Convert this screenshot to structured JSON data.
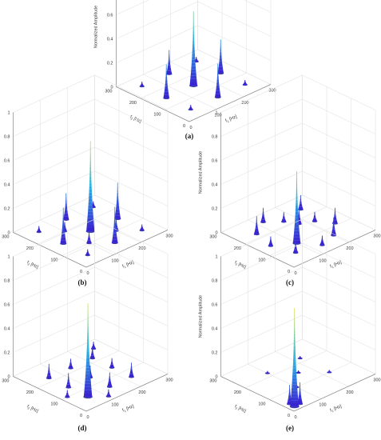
{
  "figure": {
    "z_axis_label": "Normalized Amplitude",
    "f1_label": "[Hz]",
    "f2_label": "[Hz]",
    "f1_symbol": "f",
    "f1_sub": "1",
    "f2_symbol": "f",
    "f2_sub": "2",
    "colors": {
      "grid": "#e3e3e3",
      "axis": "#8a8a8a",
      "base": "#1a1aa6",
      "low": "#3a1fd1",
      "mid": "#29b7e6",
      "high": "#f2e34a"
    }
  },
  "chart_data": [
    {
      "type": "surface",
      "caption": "(a)",
      "z_ticks": [
        "0",
        "0.2",
        "0.4",
        "0.6",
        "0.8",
        "1"
      ],
      "zlim": [
        0,
        1
      ],
      "f1_ticks": [
        "0",
        "100",
        "200",
        "300"
      ],
      "f2_ticks": [
        "0",
        "100",
        "200",
        "300"
      ],
      "xlim": [
        0,
        300
      ],
      "ylim": [
        0,
        300
      ],
      "peaks": [
        {
          "f1": 150,
          "f2": 150,
          "amp": 0.62
        },
        {
          "f1": 150,
          "f2": 50,
          "amp": 0.28
        },
        {
          "f1": 50,
          "f2": 150,
          "amp": 0.28
        },
        {
          "f1": 250,
          "f2": 150,
          "amp": 0.28
        },
        {
          "f1": 150,
          "f2": 250,
          "amp": 0.2
        },
        {
          "f1": 50,
          "f2": 50,
          "amp": 0.04
        },
        {
          "f1": 250,
          "f2": 250,
          "amp": 0.04
        },
        {
          "f1": 250,
          "f2": 50,
          "amp": 0.04
        },
        {
          "f1": 50,
          "f2": 250,
          "amp": 0.04
        }
      ]
    },
    {
      "type": "surface",
      "caption": "(b)",
      "z_ticks": [
        "0",
        "0.2",
        "0.4",
        "0.6",
        "0.8",
        "1"
      ],
      "zlim": [
        0,
        1
      ],
      "f1_ticks": [
        "0",
        "100",
        "200",
        "300"
      ],
      "f2_ticks": [
        "0",
        "100",
        "200",
        "300"
      ],
      "xlim": [
        0,
        300
      ],
      "ylim": [
        0,
        300
      ],
      "peaks": [
        {
          "f1": 150,
          "f2": 150,
          "amp": 0.75
        },
        {
          "f1": 150,
          "f2": 50,
          "amp": 0.3
        },
        {
          "f1": 50,
          "f2": 150,
          "amp": 0.3
        },
        {
          "f1": 250,
          "f2": 150,
          "amp": 0.3
        },
        {
          "f1": 150,
          "f2": 250,
          "amp": 0.22
        },
        {
          "f1": 100,
          "f2": 100,
          "amp": 0.1
        },
        {
          "f1": 200,
          "f2": 100,
          "amp": 0.1
        },
        {
          "f1": 100,
          "f2": 200,
          "amp": 0.08
        },
        {
          "f1": 50,
          "f2": 50,
          "amp": 0.05
        },
        {
          "f1": 250,
          "f2": 250,
          "amp": 0.05
        },
        {
          "f1": 250,
          "f2": 50,
          "amp": 0.05
        },
        {
          "f1": 50,
          "f2": 250,
          "amp": 0.05
        }
      ]
    },
    {
      "type": "surface",
      "caption": "(c)",
      "z_ticks": [
        "0",
        "0.2",
        "0.4",
        "0.6",
        "0.8",
        "1"
      ],
      "zlim": [
        0,
        1
      ],
      "f1_ticks": [
        "0",
        "100",
        "200",
        "300"
      ],
      "f2_ticks": [
        "0",
        "100",
        "200",
        "300"
      ],
      "xlim": [
        0,
        300
      ],
      "ylim": [
        0,
        300
      ],
      "peaks": [
        {
          "f1": 100,
          "f2": 100,
          "amp": 0.6
        },
        {
          "f1": 60,
          "f2": 220,
          "amp": 0.15
        },
        {
          "f1": 120,
          "f2": 260,
          "amp": 0.12
        },
        {
          "f1": 200,
          "f2": 60,
          "amp": 0.15
        },
        {
          "f1": 250,
          "f2": 110,
          "amp": 0.13
        },
        {
          "f1": 180,
          "f2": 180,
          "amp": 0.14
        },
        {
          "f1": 240,
          "f2": 240,
          "amp": 0.12
        },
        {
          "f1": 60,
          "f2": 60,
          "amp": 0.1
        },
        {
          "f1": 140,
          "f2": 40,
          "amp": 0.08
        },
        {
          "f1": 40,
          "f2": 140,
          "amp": 0.08
        },
        {
          "f1": 220,
          "f2": 160,
          "amp": 0.08
        },
        {
          "f1": 160,
          "f2": 220,
          "amp": 0.08
        }
      ]
    },
    {
      "type": "surface",
      "caption": "(d)",
      "z_ticks": [
        "0",
        "0.2",
        "0.4",
        "0.6",
        "0.8",
        "1"
      ],
      "zlim": [
        0,
        1
      ],
      "f1_ticks": [
        "0",
        "100",
        "200",
        "300"
      ],
      "f2_ticks": [
        "0",
        "100",
        "200",
        "300"
      ],
      "xlim": [
        0,
        300
      ],
      "ylim": [
        0,
        300
      ],
      "peaks": [
        {
          "f1": 60,
          "f2": 60,
          "amp": 0.78
        },
        {
          "f1": 60,
          "f2": 140,
          "amp": 0.12
        },
        {
          "f1": 60,
          "f2": 220,
          "amp": 0.12
        },
        {
          "f1": 140,
          "f2": 60,
          "amp": 0.12
        },
        {
          "f1": 220,
          "f2": 60,
          "amp": 0.12
        },
        {
          "f1": 140,
          "f2": 140,
          "amp": 0.1
        },
        {
          "f1": 220,
          "f2": 220,
          "amp": 0.1
        },
        {
          "f1": 140,
          "f2": 220,
          "amp": 0.08
        },
        {
          "f1": 220,
          "f2": 140,
          "amp": 0.08
        },
        {
          "f1": 20,
          "f2": 100,
          "amp": 0.06
        },
        {
          "f1": 100,
          "f2": 20,
          "amp": 0.06
        },
        {
          "f1": 260,
          "f2": 260,
          "amp": 0.06
        }
      ]
    },
    {
      "type": "surface",
      "caption": "(e)",
      "z_ticks": [
        "0",
        "0.2",
        "0.4",
        "0.6",
        "0.8",
        "1"
      ],
      "zlim": [
        0,
        1
      ],
      "f1_ticks": [
        "0",
        "100",
        "200",
        "300"
      ],
      "f2_ticks": [
        "0",
        "100",
        "200",
        "300"
      ],
      "xlim": [
        0,
        300
      ],
      "ylim": [
        0,
        300
      ],
      "peaks": [
        {
          "f1": 20,
          "f2": 20,
          "amp": 0.82
        },
        {
          "f1": 40,
          "f2": 20,
          "amp": 0.18
        },
        {
          "f1": 20,
          "f2": 40,
          "amp": 0.16
        },
        {
          "f1": 100,
          "f2": 100,
          "amp": 0.02
        },
        {
          "f1": 160,
          "f2": 160,
          "amp": 0.02
        },
        {
          "f1": 220,
          "f2": 220,
          "amp": 0.02
        },
        {
          "f1": 100,
          "f2": 220,
          "amp": 0.02
        },
        {
          "f1": 220,
          "f2": 100,
          "amp": 0.02
        }
      ]
    }
  ]
}
